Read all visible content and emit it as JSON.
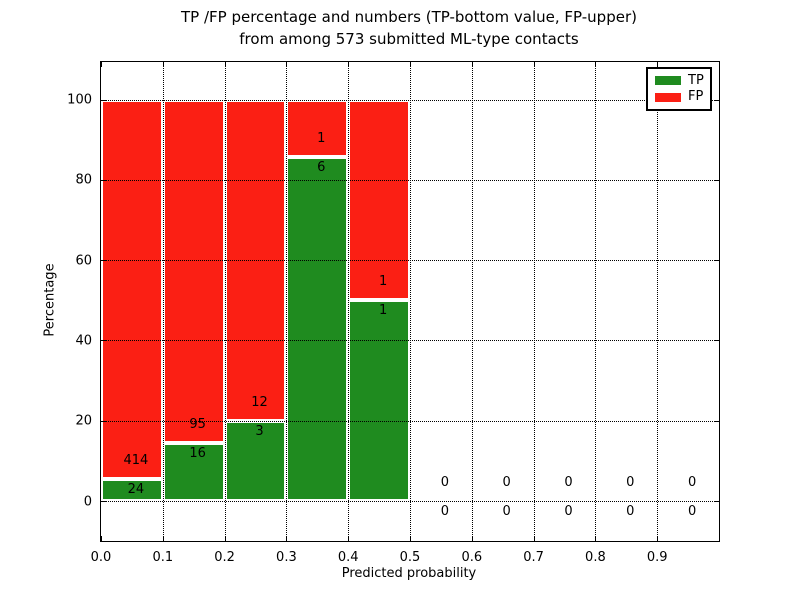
{
  "title": {
    "line1": "TP /FP percentage and numbers (TP-bottom value, FP-upper)",
    "line2": "from among 573 submitted ML-type contacts"
  },
  "chart_data": {
    "type": "bar",
    "stacked": true,
    "title": "TP /FP percentage and numbers (TP-bottom value, FP-upper) from among 573 submitted ML-type contacts",
    "xlabel": "Predicted probability",
    "ylabel": "Percentage",
    "xlim": [
      0.0,
      1.0
    ],
    "ylim": [
      -10,
      110
    ],
    "grid": "dotted",
    "legend_position": "upper right",
    "total_submitted": 573,
    "x_ticks": [
      {
        "value": 0.0,
        "label": "0.0"
      },
      {
        "value": 0.1,
        "label": "0.1"
      },
      {
        "value": 0.2,
        "label": "0.2"
      },
      {
        "value": 0.3,
        "label": "0.3"
      },
      {
        "value": 0.4,
        "label": "0.4"
      },
      {
        "value": 0.5,
        "label": "0.5"
      },
      {
        "value": 0.6,
        "label": "0.6"
      },
      {
        "value": 0.7,
        "label": "0.7"
      },
      {
        "value": 0.8,
        "label": "0.8"
      },
      {
        "value": 0.9,
        "label": "0.9"
      }
    ],
    "y_ticks": [
      {
        "value": 0,
        "label": "0"
      },
      {
        "value": 20,
        "label": "20"
      },
      {
        "value": 40,
        "label": "40"
      },
      {
        "value": 60,
        "label": "60"
      },
      {
        "value": 80,
        "label": "80"
      },
      {
        "value": 100,
        "label": "100"
      }
    ],
    "bins": [
      {
        "range": [
          0.0,
          0.1
        ],
        "tp": 24,
        "fp": 414,
        "tp_pct": 5.48,
        "fp_pct": 94.52
      },
      {
        "range": [
          0.1,
          0.2
        ],
        "tp": 16,
        "fp": 95,
        "tp_pct": 14.41,
        "fp_pct": 85.59
      },
      {
        "range": [
          0.2,
          0.3
        ],
        "tp": 3,
        "fp": 12,
        "tp_pct": 20.0,
        "fp_pct": 80.0
      },
      {
        "range": [
          0.3,
          0.4
        ],
        "tp": 6,
        "fp": 1,
        "tp_pct": 85.71,
        "fp_pct": 14.29
      },
      {
        "range": [
          0.4,
          0.5
        ],
        "tp": 1,
        "fp": 1,
        "tp_pct": 50.0,
        "fp_pct": 50.0
      },
      {
        "range": [
          0.5,
          0.6
        ],
        "tp": 0,
        "fp": 0,
        "tp_pct": 0,
        "fp_pct": 0
      },
      {
        "range": [
          0.6,
          0.7
        ],
        "tp": 0,
        "fp": 0,
        "tp_pct": 0,
        "fp_pct": 0
      },
      {
        "range": [
          0.7,
          0.8
        ],
        "tp": 0,
        "fp": 0,
        "tp_pct": 0,
        "fp_pct": 0
      },
      {
        "range": [
          0.8,
          0.9
        ],
        "tp": 0,
        "fp": 0,
        "tp_pct": 0,
        "fp_pct": 0
      },
      {
        "range": [
          0.9,
          1.0
        ],
        "tp": 0,
        "fp": 0,
        "tp_pct": 0,
        "fp_pct": 0
      }
    ],
    "legend": [
      {
        "label": "TP",
        "color": "#1f8b1f"
      },
      {
        "label": "FP",
        "color": "#fb1f14"
      }
    ]
  }
}
